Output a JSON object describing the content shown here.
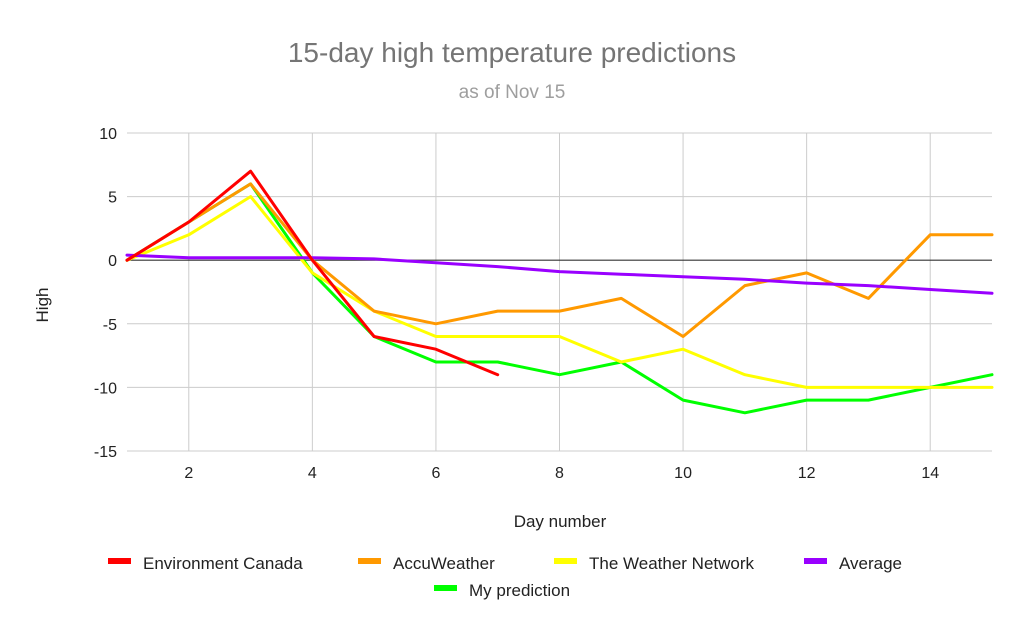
{
  "chart_data": {
    "type": "line",
    "title": "15-day high temperature predictions",
    "subtitle": "as of Nov 15",
    "xlabel": "Day number",
    "ylabel": "High",
    "xlim": [
      1,
      15
    ],
    "ylim": [
      -15,
      10
    ],
    "x_ticks": [
      2,
      4,
      6,
      8,
      10,
      12,
      14
    ],
    "y_ticks": [
      10,
      5,
      0,
      -5,
      -10,
      -15
    ],
    "grid": true,
    "legend_position": "bottom",
    "series": [
      {
        "name": "Environment Canada",
        "color": "#ff0000",
        "x": [
          1,
          2,
          3,
          4,
          5,
          6,
          7
        ],
        "y": [
          0,
          3,
          7,
          0,
          -6,
          -7,
          -9
        ]
      },
      {
        "name": "AccuWeather",
        "color": "#ff9900",
        "x": [
          1,
          2,
          3,
          4,
          5,
          6,
          7,
          8,
          9,
          10,
          11,
          12,
          13,
          14,
          15
        ],
        "y": [
          0,
          3,
          6,
          0,
          -4,
          -5,
          -4,
          -4,
          -3,
          -6,
          -2,
          -1,
          -3,
          2,
          2
        ]
      },
      {
        "name": "The Weather Network",
        "color": "#ffff00",
        "x": [
          1,
          2,
          3,
          4,
          5,
          6,
          7,
          8,
          9,
          10,
          11,
          12,
          13,
          14,
          15
        ],
        "y": [
          0,
          2,
          5,
          -1,
          -4,
          -6,
          -6,
          -6,
          -8,
          -7,
          -9,
          -10,
          -10,
          -10,
          -10
        ]
      },
      {
        "name": "Average",
        "color": "#9900ff",
        "x": [
          1,
          2,
          3,
          4,
          5,
          6,
          7,
          8,
          9,
          10,
          11,
          12,
          13,
          14,
          15
        ],
        "y": [
          0.4,
          0.2,
          0.2,
          0.2,
          0.1,
          -0.2,
          -0.5,
          -0.9,
          -1.1,
          -1.3,
          -1.5,
          -1.8,
          -2.0,
          -2.3,
          -2.6
        ]
      },
      {
        "name": "My prediction",
        "color": "#00ff00",
        "x": [
          1,
          2,
          3,
          4,
          5,
          6,
          7,
          8,
          9,
          10,
          11,
          12,
          13,
          14,
          15
        ],
        "y": [
          0,
          3,
          6,
          -1,
          -6,
          -8,
          -8,
          -9,
          -8,
          -11,
          -12,
          -11,
          -11,
          -10,
          -9
        ]
      }
    ]
  }
}
